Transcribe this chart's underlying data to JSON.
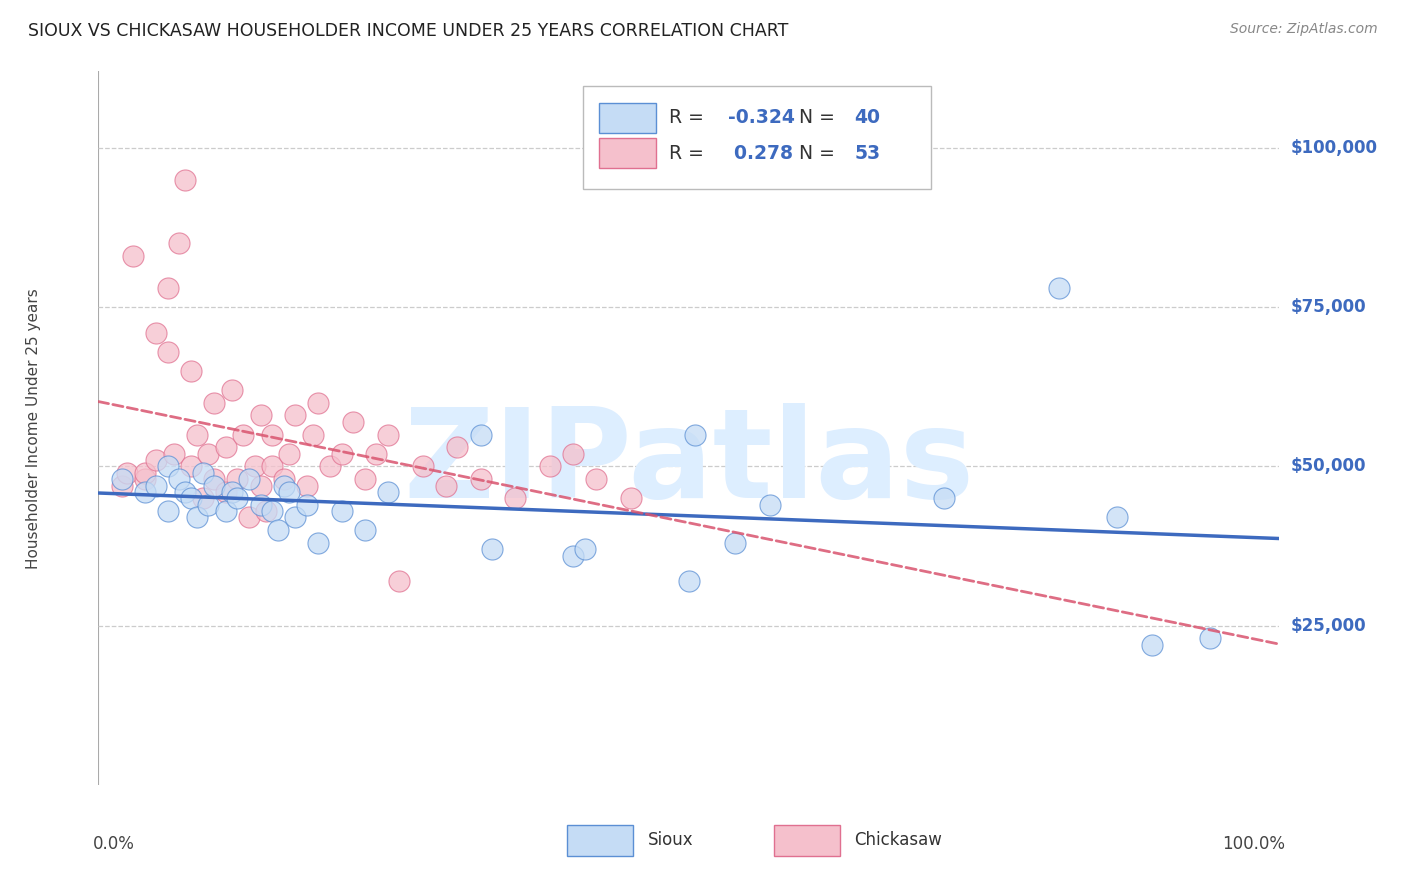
{
  "title": "SIOUX VS CHICKASAW HOUSEHOLDER INCOME UNDER 25 YEARS CORRELATION CHART",
  "source": "Source: ZipAtlas.com",
  "ylabel": "Householder Income Under 25 years",
  "ytick_values": [
    25000,
    50000,
    75000,
    100000
  ],
  "ytick_labels": [
    "$25,000",
    "$50,000",
    "$75,000",
    "$100,000"
  ],
  "ymin": 0,
  "ymax": 112000,
  "xmin": -0.01,
  "xmax": 1.01,
  "R_sioux": -0.324,
  "N_sioux": 40,
  "R_chickasaw": 0.278,
  "N_chickasaw": 53,
  "color_sioux_fill": "#c5dcf5",
  "color_sioux_edge": "#5b8fd4",
  "color_sioux_line": "#3d6abf",
  "color_chickasaw_fill": "#f5c0cc",
  "color_chickasaw_edge": "#e07090",
  "color_chickasaw_line": "#d9546e",
  "legend_text_color": "#3d6abf",
  "watermark": "ZIPatlas",
  "watermark_color": "#ddeeff",
  "sioux_x": [
    0.01,
    0.03,
    0.04,
    0.05,
    0.05,
    0.06,
    0.065,
    0.07,
    0.075,
    0.08,
    0.085,
    0.09,
    0.1,
    0.105,
    0.11,
    0.12,
    0.13,
    0.14,
    0.145,
    0.15,
    0.155,
    0.16,
    0.17,
    0.18,
    0.2,
    0.22,
    0.24,
    0.32,
    0.33,
    0.4,
    0.41,
    0.5,
    0.505,
    0.54,
    0.57,
    0.72,
    0.82,
    0.87,
    0.9,
    0.95
  ],
  "sioux_y": [
    48000,
    46000,
    47000,
    50000,
    43000,
    48000,
    46000,
    45000,
    42000,
    49000,
    44000,
    47000,
    43000,
    46000,
    45000,
    48000,
    44000,
    43000,
    40000,
    47000,
    46000,
    42000,
    44000,
    38000,
    43000,
    40000,
    46000,
    55000,
    37000,
    36000,
    37000,
    32000,
    55000,
    38000,
    44000,
    45000,
    78000,
    42000,
    22000,
    23000
  ],
  "chickasaw_x": [
    0.01,
    0.015,
    0.02,
    0.03,
    0.03,
    0.04,
    0.04,
    0.05,
    0.05,
    0.055,
    0.06,
    0.065,
    0.07,
    0.07,
    0.075,
    0.08,
    0.085,
    0.09,
    0.09,
    0.1,
    0.1,
    0.105,
    0.11,
    0.115,
    0.12,
    0.125,
    0.13,
    0.13,
    0.135,
    0.14,
    0.14,
    0.15,
    0.155,
    0.16,
    0.17,
    0.175,
    0.18,
    0.19,
    0.2,
    0.21,
    0.22,
    0.23,
    0.24,
    0.25,
    0.27,
    0.29,
    0.3,
    0.32,
    0.35,
    0.38,
    0.4,
    0.42,
    0.45
  ],
  "chickasaw_y": [
    47000,
    49000,
    83000,
    48000,
    49000,
    51000,
    71000,
    78000,
    68000,
    52000,
    85000,
    95000,
    50000,
    65000,
    55000,
    45000,
    52000,
    48000,
    60000,
    53000,
    46000,
    62000,
    48000,
    55000,
    42000,
    50000,
    58000,
    47000,
    43000,
    55000,
    50000,
    48000,
    52000,
    58000,
    47000,
    55000,
    60000,
    50000,
    52000,
    57000,
    48000,
    52000,
    55000,
    32000,
    50000,
    47000,
    53000,
    48000,
    45000,
    50000,
    52000,
    48000,
    45000
  ]
}
